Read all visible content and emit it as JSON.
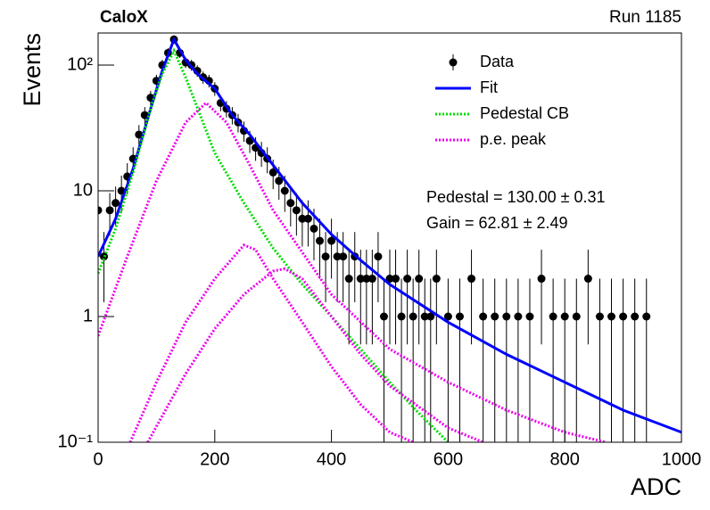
{
  "chart_data": {
    "type": "scatter",
    "title": "CaloX",
    "subtitle": "Run 1185",
    "x_label": "ADC",
    "y_label": "Events",
    "annotations": [
      "Pedestal = 130.00 ± 0.31",
      "Gain = 62.81 ± 2.49"
    ],
    "xlim": [
      0,
      1000
    ],
    "xticks": [
      0,
      200,
      400,
      600,
      800,
      1000
    ],
    "ylim": [
      0.1,
      180
    ],
    "yticks": [
      {
        "value": 0.1,
        "label": "10⁻¹"
      },
      1,
      10,
      {
        "value": 100,
        "label": "10²"
      }
    ],
    "log_y": true,
    "legend": "top-right",
    "series": [
      {
        "name": "Data",
        "color": "#000000",
        "style": "points",
        "x": [
          0,
          10,
          20,
          30,
          40,
          50,
          60,
          70,
          80,
          90,
          100,
          110,
          120,
          130,
          140,
          150,
          160,
          170,
          180,
          190,
          200,
          210,
          220,
          230,
          240,
          250,
          260,
          270,
          280,
          290,
          300,
          310,
          320,
          330,
          340,
          350,
          360,
          370,
          380,
          390,
          400,
          410,
          420,
          430,
          440,
          450,
          460,
          470,
          480,
          490,
          500,
          510,
          520,
          530,
          540,
          550,
          560,
          570,
          580,
          600,
          620,
          640,
          660,
          680,
          700,
          720,
          740,
          760,
          780,
          800,
          820,
          840,
          860,
          880,
          900,
          920,
          940
        ],
        "values": [
          7,
          3,
          7,
          8,
          10,
          13,
          18,
          28,
          40,
          55,
          75,
          100,
          125,
          160,
          125,
          105,
          100,
          90,
          80,
          75,
          65,
          50,
          45,
          40,
          35,
          30,
          25,
          22,
          20,
          18,
          14,
          12,
          10,
          8,
          7,
          6,
          6,
          5,
          4,
          3,
          4,
          3,
          3,
          2,
          3,
          2,
          2,
          2,
          3,
          1,
          2,
          2,
          1,
          2,
          1,
          2,
          1,
          1,
          2,
          1,
          1,
          2,
          1,
          1,
          1,
          1,
          1,
          2,
          1,
          1,
          1,
          2,
          1,
          1,
          1,
          1,
          1
        ],
        "errors": [
          2.6,
          1.7,
          2.6,
          2.8,
          3.2,
          3.6,
          4.2,
          5.3,
          6.3,
          7.4,
          8.7,
          10,
          11.2,
          12.6,
          11.2,
          10.2,
          10,
          9.5,
          8.9,
          8.7,
          8.1,
          7.1,
          6.7,
          6.3,
          5.9,
          5.5,
          5,
          4.7,
          4.5,
          4.2,
          3.7,
          3.5,
          3.2,
          2.8,
          2.6,
          2.4,
          2.4,
          2.2,
          2,
          1.7,
          2,
          1.7,
          1.7,
          1.4,
          1.7,
          1.4,
          1.4,
          1.4,
          1.7,
          1,
          1.4,
          1.4,
          1,
          1.4,
          1,
          1.4,
          1,
          1,
          1.4,
          1,
          1,
          1.4,
          1,
          1,
          1,
          1,
          1,
          1.4,
          1,
          1,
          1,
          1.4,
          1,
          1,
          1,
          1,
          1
        ]
      },
      {
        "name": "Fit",
        "color": "#0000ff",
        "style": "line",
        "x": [
          0,
          30,
          60,
          90,
          110,
          130,
          150,
          170,
          200,
          230,
          260,
          300,
          350,
          400,
          450,
          500,
          600,
          700,
          800,
          900,
          1000
        ],
        "values": [
          3,
          6,
          15,
          45,
          90,
          160,
          110,
          85,
          65,
          40,
          28,
          16,
          8,
          4.5,
          2.8,
          1.8,
          0.9,
          0.5,
          0.3,
          0.18,
          0.12
        ]
      },
      {
        "name": "Pedestal CB",
        "color": "#00dd00",
        "style": "dotted",
        "x": [
          0,
          30,
          60,
          90,
          110,
          130,
          150,
          200,
          250,
          300,
          350,
          400,
          450,
          500,
          550,
          600
        ],
        "values": [
          2.2,
          5,
          14,
          45,
          85,
          130,
          80,
          20,
          8,
          3.5,
          1.8,
          1.0,
          0.55,
          0.3,
          0.17,
          0.1
        ]
      },
      {
        "name": "p.e. peak",
        "color": "#ee00ee",
        "style": "dotted",
        "x": [
          0,
          50,
          100,
          150,
          185,
          220,
          260,
          300,
          400,
          500,
          600,
          700,
          800,
          870,
          null,
          55,
          100,
          150,
          200,
          250,
          270,
          300,
          350,
          400,
          450,
          500,
          540,
          null,
          85,
          150,
          200,
          250,
          300,
          320,
          350,
          400,
          450,
          500,
          600,
          660
        ],
        "values": [
          0.7,
          3,
          12,
          35,
          50,
          35,
          16,
          7,
          1.5,
          0.55,
          0.3,
          0.18,
          0.12,
          0.1,
          null,
          0.1,
          0.3,
          0.9,
          2,
          3.7,
          3.4,
          2,
          0.9,
          0.4,
          0.2,
          0.12,
          0.1,
          null,
          0.1,
          0.35,
          0.8,
          1.5,
          2.3,
          2.4,
          2,
          1,
          0.5,
          0.28,
          0.13,
          0.1
        ]
      }
    ]
  }
}
